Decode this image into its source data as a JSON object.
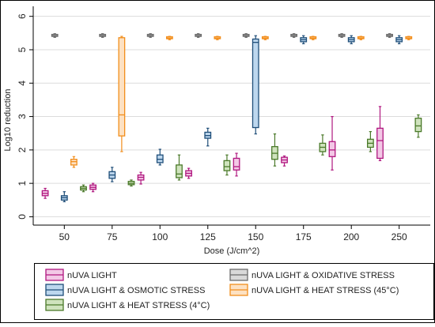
{
  "chart_data": {
    "type": "box",
    "xlabel": "Dose (J/cm^2)",
    "ylabel": "Log10 reduction",
    "ylim": [
      -0.25,
      6.3
    ],
    "yticks": [
      0,
      1,
      2,
      3,
      4,
      5,
      6
    ],
    "categories": [
      "50",
      "75",
      "100",
      "125",
      "150",
      "175",
      "200",
      "250"
    ],
    "grid": "horizontal",
    "legend_position": "bottom",
    "series": [
      {
        "name": "nUVA LIGHT",
        "color": "#b0177f",
        "fill": "#f3c8e6",
        "boxes": [
          {
            "min": 0.55,
            "q1": 0.63,
            "median": 0.7,
            "q3": 0.78,
            "max": 0.85
          },
          {
            "min": 0.75,
            "q1": 0.82,
            "median": 0.88,
            "q3": 0.95,
            "max": 1.0
          },
          {
            "min": 0.98,
            "q1": 1.1,
            "median": 1.18,
            "q3": 1.25,
            "max": 1.33
          },
          {
            "min": 1.15,
            "q1": 1.22,
            "median": 1.3,
            "q3": 1.38,
            "max": 1.45
          },
          {
            "min": 1.22,
            "q1": 1.4,
            "median": 1.5,
            "q3": 1.75,
            "max": 1.9
          },
          {
            "min": 1.52,
            "q1": 1.62,
            "median": 1.7,
            "q3": 1.78,
            "max": 1.82
          },
          {
            "min": 1.4,
            "q1": 1.8,
            "median": 2.0,
            "q3": 2.25,
            "max": 3.0
          },
          {
            "min": 1.68,
            "q1": 1.75,
            "median": 2.28,
            "q3": 2.65,
            "max": 3.3
          }
        ]
      },
      {
        "name": "nUVA LIGHT & OXIDATIVE STRESS",
        "color": "#6b6b6b",
        "fill": "#d9d9d9",
        "boxes": [
          {
            "min": 5.37,
            "q1": 5.4,
            "median": 5.42,
            "q3": 5.44,
            "max": 5.48
          },
          {
            "min": 5.37,
            "q1": 5.4,
            "median": 5.42,
            "q3": 5.44,
            "max": 5.48
          },
          {
            "min": 5.37,
            "q1": 5.4,
            "median": 5.42,
            "q3": 5.44,
            "max": 5.48
          },
          {
            "min": 5.37,
            "q1": 5.4,
            "median": 5.42,
            "q3": 5.44,
            "max": 5.48
          },
          {
            "min": 5.37,
            "q1": 5.4,
            "median": 5.42,
            "q3": 5.44,
            "max": 5.48
          },
          {
            "min": 5.37,
            "q1": 5.4,
            "median": 5.42,
            "q3": 5.44,
            "max": 5.48
          },
          {
            "min": 5.37,
            "q1": 5.4,
            "median": 5.42,
            "q3": 5.44,
            "max": 5.48
          },
          {
            "min": 5.37,
            "q1": 5.4,
            "median": 5.42,
            "q3": 5.44,
            "max": 5.48
          }
        ]
      },
      {
        "name": "nUVA LIGHT & OSMOTIC STRESS",
        "color": "#1f4e79",
        "fill": "#bdd7ee",
        "boxes": [
          {
            "min": 0.45,
            "q1": 0.5,
            "median": 0.57,
            "q3": 0.63,
            "max": 0.75
          },
          {
            "min": 1.05,
            "q1": 1.15,
            "median": 1.25,
            "q3": 1.35,
            "max": 1.48
          },
          {
            "min": 1.55,
            "q1": 1.62,
            "median": 1.72,
            "q3": 1.85,
            "max": 2.02
          },
          {
            "min": 2.12,
            "q1": 2.35,
            "median": 2.43,
            "q3": 2.53,
            "max": 2.65
          },
          {
            "min": 2.48,
            "q1": 2.67,
            "median": 5.22,
            "q3": 5.32,
            "max": 5.42
          },
          {
            "min": 5.18,
            "q1": 5.24,
            "median": 5.3,
            "q3": 5.36,
            "max": 5.42
          },
          {
            "min": 5.18,
            "q1": 5.24,
            "median": 5.3,
            "q3": 5.36,
            "max": 5.42
          },
          {
            "min": 5.18,
            "q1": 5.24,
            "median": 5.3,
            "q3": 5.36,
            "max": 5.42
          }
        ]
      },
      {
        "name": "nUVA LIGHT & HEAT STRESS (45°C)",
        "color": "#f28e1c",
        "fill": "#fde1c2",
        "boxes": [
          {
            "min": 1.48,
            "q1": 1.55,
            "median": 1.65,
            "q3": 1.72,
            "max": 1.8
          },
          {
            "min": 1.95,
            "q1": 2.42,
            "median": 3.05,
            "q3": 5.36,
            "max": 5.4
          },
          {
            "min": 5.3,
            "q1": 5.33,
            "median": 5.35,
            "q3": 5.37,
            "max": 5.4
          },
          {
            "min": 5.3,
            "q1": 5.33,
            "median": 5.35,
            "q3": 5.37,
            "max": 5.4
          },
          {
            "min": 5.3,
            "q1": 5.33,
            "median": 5.35,
            "q3": 5.37,
            "max": 5.4
          },
          {
            "min": 5.3,
            "q1": 5.33,
            "median": 5.35,
            "q3": 5.37,
            "max": 5.4
          },
          {
            "min": 5.3,
            "q1": 5.33,
            "median": 5.35,
            "q3": 5.37,
            "max": 5.4
          },
          {
            "min": 5.3,
            "q1": 5.33,
            "median": 5.35,
            "q3": 5.37,
            "max": 5.4
          }
        ]
      },
      {
        "name": "nUVA LIGHT & HEAT STRESS (4°C)",
        "color": "#4b7a2a",
        "fill": "#cfe3bd",
        "boxes": [
          {
            "min": 0.75,
            "q1": 0.8,
            "median": 0.85,
            "q3": 0.9,
            "max": 0.95
          },
          {
            "min": 0.92,
            "q1": 0.96,
            "median": 1.0,
            "q3": 1.06,
            "max": 1.1
          },
          {
            "min": 1.1,
            "q1": 1.17,
            "median": 1.28,
            "q3": 1.55,
            "max": 1.85
          },
          {
            "min": 1.25,
            "q1": 1.38,
            "median": 1.5,
            "q3": 1.68,
            "max": 1.85
          },
          {
            "min": 1.52,
            "q1": 1.72,
            "median": 1.9,
            "q3": 2.1,
            "max": 2.48
          },
          {
            "min": 1.85,
            "q1": 1.95,
            "median": 2.08,
            "q3": 2.2,
            "max": 2.45
          },
          {
            "min": 1.95,
            "q1": 2.08,
            "median": 2.2,
            "q3": 2.32,
            "max": 2.55
          },
          {
            "min": 2.38,
            "q1": 2.55,
            "median": 2.72,
            "q3": 2.95,
            "max": 3.05
          }
        ]
      }
    ],
    "legend_order": [
      0,
      1,
      2,
      3,
      4
    ]
  }
}
